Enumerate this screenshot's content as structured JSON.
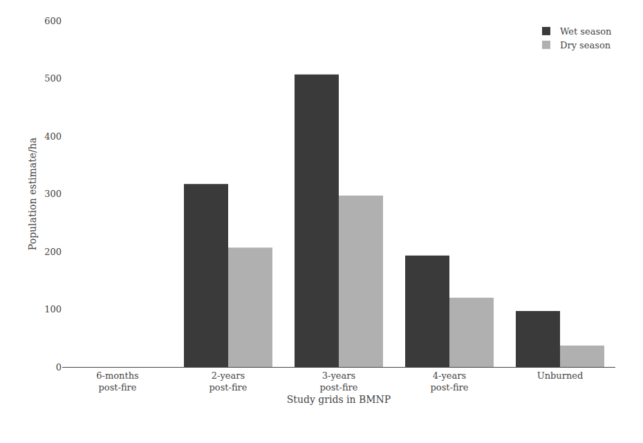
{
  "chart_data": {
    "type": "bar",
    "xlabel": "Study grids in BMNP",
    "ylabel": "Population estimate/ha",
    "categories": [
      "6-months\npost-fire",
      "2-years\npost-fire",
      "3-years\npost-fire",
      "4-years\npost-fire",
      "Unburned"
    ],
    "series": [
      {
        "name": "Wet season",
        "color": "#3a3a3a",
        "values": [
          0,
          317,
          507,
          193,
          97
        ]
      },
      {
        "name": "Dry season",
        "color": "#b0b0b0",
        "values": [
          0,
          207,
          297,
          120,
          37
        ]
      }
    ],
    "ylim": [
      0,
      600
    ],
    "yticks": [
      0,
      100,
      200,
      300,
      400,
      500,
      600
    ],
    "grid": false,
    "legend": "upper right"
  }
}
